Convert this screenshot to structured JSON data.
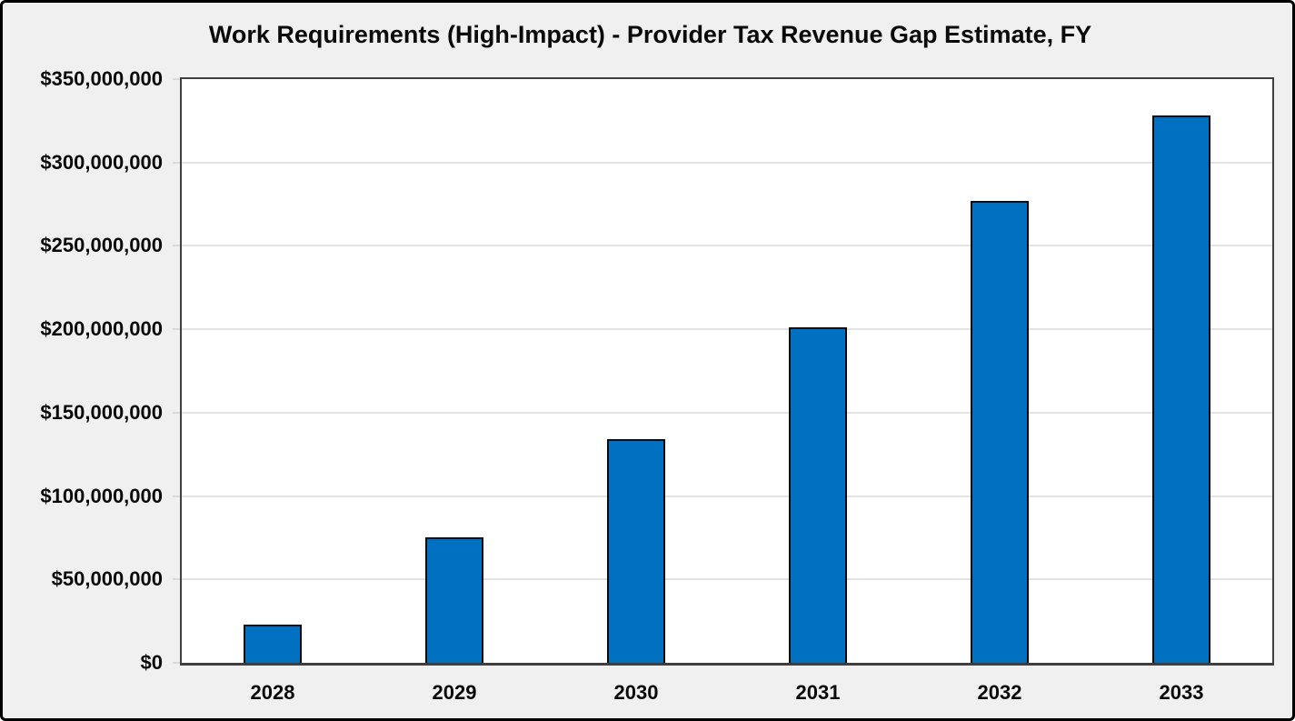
{
  "chart_data": {
    "type": "bar",
    "title": "Work Requirements (High-Impact) - Provider Tax Revenue Gap Estimate, FY",
    "categories": [
      "2028",
      "2029",
      "2030",
      "2031",
      "2032",
      "2033"
    ],
    "values": [
      23000000,
      75000000,
      134000000,
      201000000,
      277000000,
      328000000
    ],
    "xlabel": "",
    "ylabel": "",
    "ylim": [
      0,
      350000000
    ],
    "ytick_step": 50000000,
    "ytick_labels": [
      "$0",
      "$50,000,000",
      "$100,000,000",
      "$150,000,000",
      "$200,000,000",
      "$250,000,000",
      "$300,000,000",
      "$350,000,000"
    ],
    "grid": true,
    "legend": false,
    "colors": {
      "bar_fill": "#0070c0",
      "bar_border": "#0a0a0a",
      "chart_background": "#f0f0f1",
      "plot_background": "#ffffff",
      "gridline": "#e3e3e3",
      "axis_line": "#3f3f3f",
      "text": "#0a0a0a",
      "outer_border": "#000000"
    }
  }
}
